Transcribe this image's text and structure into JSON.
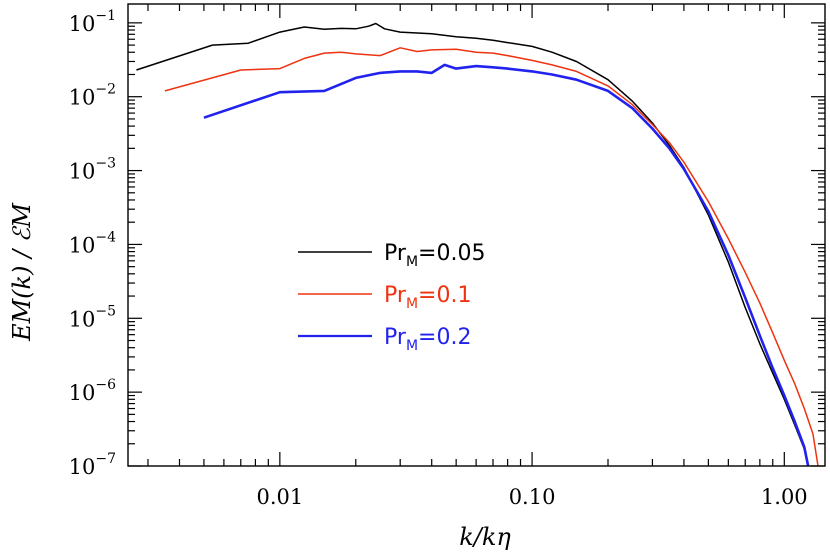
{
  "chart_data": {
    "type": "line",
    "xlabel": "k/kη",
    "ylabel": "EM(k) / ℰM",
    "xscale": "log",
    "yscale": "log",
    "xlim": [
      0.0025,
      1.45
    ],
    "ylim": [
      1e-07,
      0.18
    ],
    "x_ticks": [
      {
        "value": 0.01,
        "label": "0.01"
      },
      {
        "value": 0.1,
        "label": "0.10"
      },
      {
        "value": 1.0,
        "label": "1.00"
      }
    ],
    "y_ticks": [
      {
        "value": 0.1,
        "mantissa": "10",
        "exponent": "−1"
      },
      {
        "value": 0.01,
        "mantissa": "10",
        "exponent": "−2"
      },
      {
        "value": 0.001,
        "mantissa": "10",
        "exponent": "−3"
      },
      {
        "value": 0.0001,
        "mantissa": "10",
        "exponent": "−4"
      },
      {
        "value": 1e-05,
        "mantissa": "10",
        "exponent": "−5"
      },
      {
        "value": 1e-06,
        "mantissa": "10",
        "exponent": "−6"
      },
      {
        "value": 1e-07,
        "mantissa": "10",
        "exponent": "−7"
      }
    ],
    "grid": false,
    "legend_position": "center-left",
    "series": [
      {
        "name": "PrM=0.05",
        "label_main": "Pr",
        "label_sub": "M",
        "label_value": "=0.05",
        "color": "#000000",
        "x": [
          0.0027,
          0.0054,
          0.0075,
          0.01,
          0.0125,
          0.015,
          0.0175,
          0.02,
          0.0225,
          0.024,
          0.026,
          0.03,
          0.04,
          0.05,
          0.06,
          0.07,
          0.08,
          0.1,
          0.12,
          0.15,
          0.2,
          0.25,
          0.3,
          0.35,
          0.4,
          0.5,
          0.6,
          0.7,
          0.8,
          0.9,
          1.0,
          1.1,
          1.2,
          1.3
        ],
        "y": [
          0.023,
          0.05,
          0.053,
          0.075,
          0.088,
          0.082,
          0.084,
          0.083,
          0.09,
          0.098,
          0.083,
          0.075,
          0.071,
          0.065,
          0.062,
          0.058,
          0.054,
          0.048,
          0.04,
          0.03,
          0.017,
          0.0087,
          0.0044,
          0.0022,
          0.0011,
          0.00025,
          5.8e-05,
          1.4e-05,
          4.5e-06,
          1.8e-06,
          8e-07,
          3.6e-07,
          1.7e-07,
          4.73e-08
        ]
      },
      {
        "name": "PrM=0.1",
        "label_main": "Pr",
        "label_sub": "M",
        "label_value": "=0.1",
        "color": "#ee3311",
        "x": [
          0.0035,
          0.007,
          0.01,
          0.0125,
          0.015,
          0.0175,
          0.02,
          0.025,
          0.03,
          0.035,
          0.04,
          0.05,
          0.06,
          0.07,
          0.08,
          0.1,
          0.12,
          0.15,
          0.2,
          0.25,
          0.3,
          0.35,
          0.4,
          0.5,
          0.6,
          0.7,
          0.8,
          0.9,
          1.0,
          1.1,
          1.2,
          1.3,
          1.45
        ],
        "y": [
          0.012,
          0.023,
          0.024,
          0.033,
          0.039,
          0.04,
          0.038,
          0.036,
          0.046,
          0.041,
          0.043,
          0.044,
          0.04,
          0.039,
          0.036,
          0.031,
          0.027,
          0.022,
          0.014,
          0.0078,
          0.0042,
          0.0024,
          0.0013,
          0.00038,
          0.00012,
          4.2e-05,
          1.6e-05,
          6.3e-06,
          2.7e-06,
          1.3e-06,
          6e-07,
          2.7e-07,
          2.5e-08
        ]
      },
      {
        "name": "PrM=0.2",
        "label_main": "Pr",
        "label_sub": "M",
        "label_value": "=0.2",
        "color": "#2222ee",
        "x": [
          0.005,
          0.01,
          0.015,
          0.02,
          0.025,
          0.03,
          0.035,
          0.04,
          0.045,
          0.05,
          0.06,
          0.07,
          0.08,
          0.1,
          0.12,
          0.15,
          0.2,
          0.25,
          0.3,
          0.35,
          0.4,
          0.5,
          0.6,
          0.7,
          0.8,
          0.9,
          1.0,
          1.1,
          1.2,
          1.3
        ],
        "y": [
          0.0052,
          0.0115,
          0.012,
          0.018,
          0.021,
          0.022,
          0.022,
          0.021,
          0.027,
          0.024,
          0.026,
          0.025,
          0.024,
          0.022,
          0.02,
          0.017,
          0.012,
          0.007,
          0.0037,
          0.002,
          0.00105,
          0.00028,
          7.2e-05,
          1.9e-05,
          5.8e-06,
          2.1e-06,
          9e-07,
          4e-07,
          1.8e-07,
          4.73e-08
        ]
      }
    ]
  }
}
